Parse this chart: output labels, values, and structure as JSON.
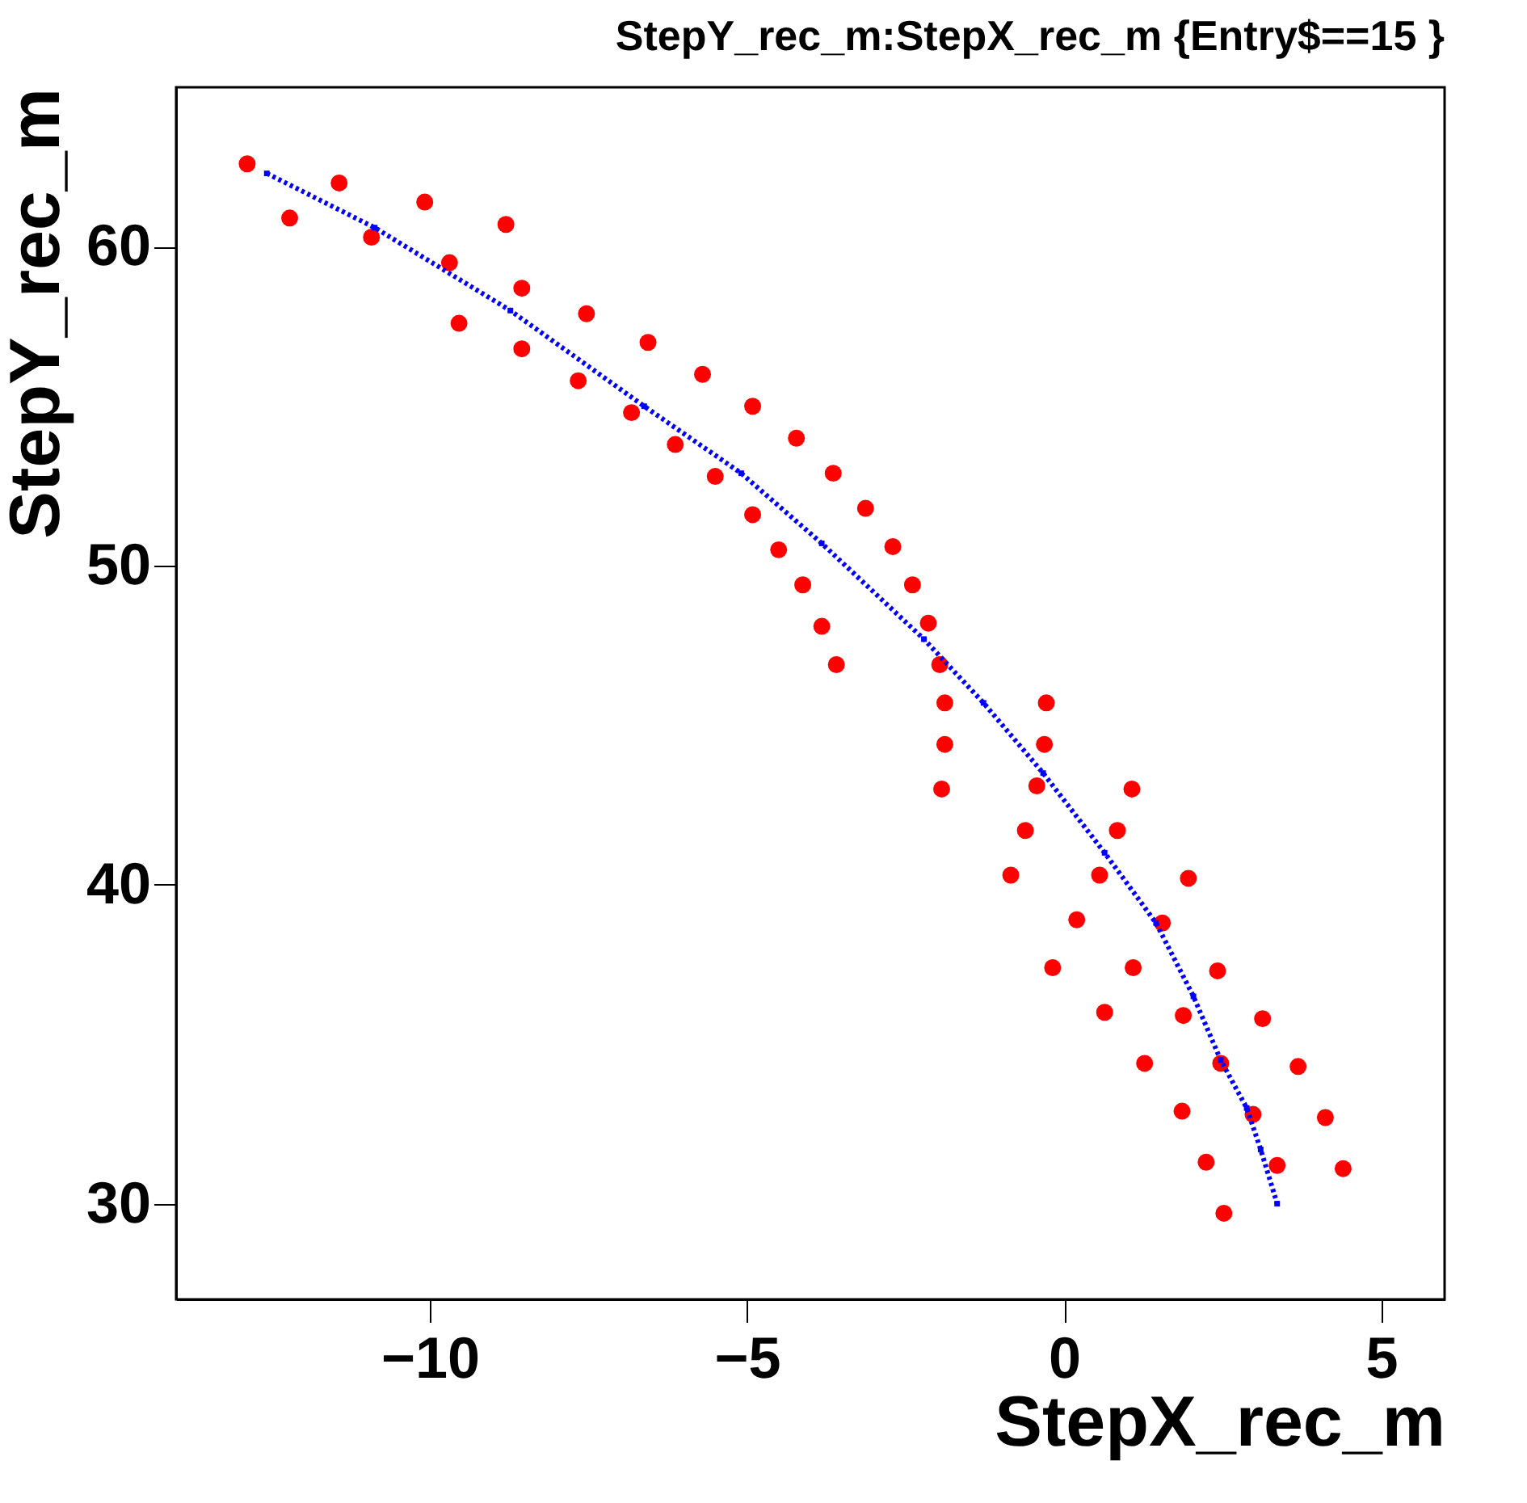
{
  "chart_data": {
    "type": "scatter",
    "title": "StepY_rec_m:StepX_rec_m {Entry$==15 }",
    "xlabel": "StepX_rec_m",
    "ylabel": "StepY_rec_m",
    "xlim": [
      -14,
      6
    ],
    "ylim": [
      27,
      65
    ],
    "xticks": [
      -10,
      -5,
      0,
      5
    ],
    "yticks": [
      30,
      40,
      50,
      60
    ],
    "grid": false,
    "series": [
      {
        "color": "#ff0000",
        "marker": "circle",
        "x": [
          -12.88,
          -12.21,
          -11.43,
          -10.92,
          -10.08,
          -9.69,
          -8.8,
          -8.55,
          -9.54,
          -8.55,
          -7.53,
          -7.66,
          -6.82,
          -6.56,
          -6.13,
          -5.7,
          -5.5,
          -4.91,
          -4.91,
          -4.5,
          -4.22,
          -4.12,
          -3.64,
          -3.82,
          -3.59,
          -3.13,
          -2.7,
          -2.39,
          -2.14,
          -1.96,
          -1.88,
          -1.88,
          -1.93,
          -0.28,
          -0.31,
          -0.43,
          -0.61,
          -0.84,
          1.07,
          0.84,
          1.96,
          1.55,
          2.42,
          3.13,
          3.69,
          4.12,
          4.4,
          3.36,
          2.98,
          2.47,
          1.88,
          1.09,
          0.56,
          0.2,
          -0.18,
          0.64,
          1.27,
          1.86,
          2.24,
          2.52
        ],
        "values": [
          62.6,
          60.9,
          62.0,
          60.3,
          61.4,
          59.5,
          60.7,
          58.7,
          57.6,
          56.8,
          57.9,
          55.8,
          54.8,
          57.0,
          53.8,
          56.0,
          52.8,
          55.0,
          51.6,
          50.5,
          54.0,
          49.4,
          52.9,
          48.1,
          46.9,
          51.8,
          50.6,
          49.4,
          48.2,
          46.9,
          45.7,
          44.4,
          43.0,
          45.7,
          44.4,
          43.1,
          41.7,
          40.3,
          43.0,
          41.7,
          40.2,
          38.8,
          37.3,
          35.8,
          34.3,
          32.7,
          31.1,
          31.2,
          32.8,
          34.4,
          35.9,
          37.4,
          40.3,
          38.9,
          37.4,
          36.0,
          34.4,
          32.9,
          31.3,
          29.7
        ]
      },
      {
        "type": "line",
        "color": "#0000ff",
        "marker": "square",
        "line_style": "dotted",
        "x": [
          -12.57,
          -10.87,
          -8.73,
          -6.62,
          -5.09,
          -3.82,
          -2.21,
          -1.27,
          -0.33,
          0.64,
          1.45,
          2.04,
          2.47,
          2.88,
          3.1,
          3.36
        ],
        "values": [
          62.3,
          60.6,
          58.0,
          55.0,
          52.9,
          50.7,
          47.7,
          45.7,
          43.5,
          41.0,
          38.8,
          36.5,
          34.5,
          33.0,
          31.7,
          30.0
        ]
      }
    ]
  }
}
